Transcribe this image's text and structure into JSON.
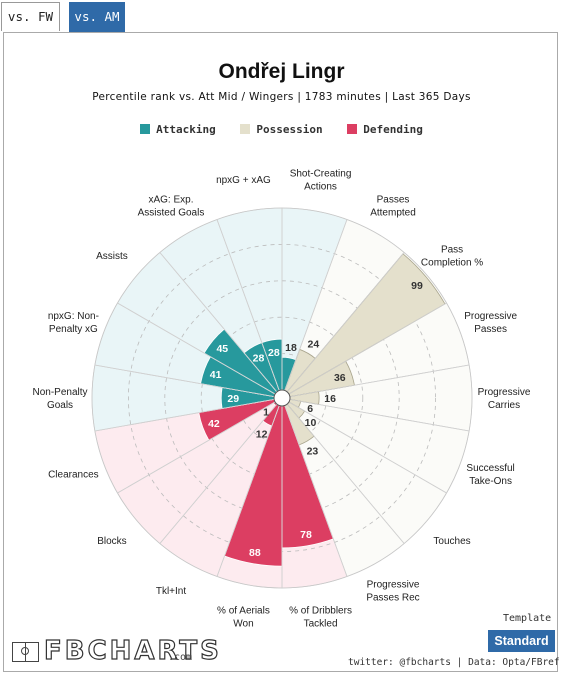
{
  "tabs": [
    {
      "label": "vs. FW",
      "active": false
    },
    {
      "label": "vs. AM",
      "active": true
    }
  ],
  "header": {
    "title": "Ondřej Lingr",
    "subtitle": "Percentile rank vs. Att Mid / Wingers | 1783 minutes | Last 365 Days"
  },
  "legend": [
    {
      "label": "Attacking",
      "color": "#27999d"
    },
    {
      "label": "Possession",
      "color": "#e4e0cc"
    },
    {
      "label": "Defending",
      "color": "#dc3e62"
    }
  ],
  "chart_data": {
    "type": "polar-bar",
    "rmax": 100,
    "rings": [
      20,
      40,
      60,
      80,
      100
    ],
    "categories": [
      {
        "label": "Shot-Creating Actions",
        "value": 18,
        "group": "Attacking"
      },
      {
        "label": "Passes Attempted",
        "value": 24,
        "group": "Possession"
      },
      {
        "label": "Pass Completion %",
        "value": 99,
        "group": "Possession"
      },
      {
        "label": "Progressive Passes",
        "value": 36,
        "group": "Possession"
      },
      {
        "label": "Progressive Carries",
        "value": 16,
        "group": "Possession"
      },
      {
        "label": "Successful Take-Ons",
        "value": 6,
        "group": "Possession"
      },
      {
        "label": "Touches",
        "value": 10,
        "group": "Possession"
      },
      {
        "label": "Progressive Passes Rec",
        "value": 23,
        "group": "Possession"
      },
      {
        "label": "% of Dribblers Tackled",
        "value": 78,
        "group": "Defending"
      },
      {
        "label": "% of Aerials Won",
        "value": 88,
        "group": "Defending"
      },
      {
        "label": "Tkl+Int",
        "value": 12,
        "group": "Defending"
      },
      {
        "label": "Blocks",
        "value": 1,
        "group": "Defending"
      },
      {
        "label": "Clearances",
        "value": 42,
        "group": "Defending"
      },
      {
        "label": "Non-Penalty Goals",
        "value": 29,
        "group": "Attacking"
      },
      {
        "label": "npxG: Non-Penalty xG",
        "value": 41,
        "group": "Attacking"
      },
      {
        "label": "Assists",
        "value": 45,
        "group": "Attacking"
      },
      {
        "label": "xAG: Exp. Assisted Goals",
        "value": 28,
        "group": "Attacking"
      },
      {
        "label": "npxG + xAG",
        "value": 28,
        "group": "Attacking"
      }
    ],
    "label_lines": [
      [
        "Shot-Creating",
        "Actions"
      ],
      [
        "Passes",
        "Attempted"
      ],
      [
        "Pass",
        "Completion %"
      ],
      [
        "Progressive",
        "Passes"
      ],
      [
        "Progressive",
        "Carries"
      ],
      [
        "Successful",
        "Take-Ons"
      ],
      [
        "Touches"
      ],
      [
        "Progressive",
        "Passes Rec"
      ],
      [
        "% of Dribblers",
        "Tackled"
      ],
      [
        "% of Aerials",
        "Won"
      ],
      [
        "Tkl+Int"
      ],
      [
        "Blocks"
      ],
      [
        "Clearances"
      ],
      [
        "Non-Penalty",
        "Goals"
      ],
      [
        "npxG: Non-",
        "Penalty xG"
      ],
      [
        "Assists"
      ],
      [
        "xAG: Exp.",
        "Assisted Goals"
      ],
      [
        "npxG + xAG"
      ]
    ],
    "group_colors": {
      "Attacking": {
        "bar": "#27999d",
        "bg": "#e9f5f7"
      },
      "Possession": {
        "bar": "#e4e0cc",
        "bg": "#fbfbf8"
      },
      "Defending": {
        "bar": "#dc3e62",
        "bg": "#fdebef"
      }
    }
  },
  "footer": {
    "logo_text": "FBCHARTS",
    "logo_suffix": ".com",
    "template_label": "Template",
    "template_button": "Standard",
    "credit": "twitter: @fbcharts | Data: Opta/FBref"
  }
}
